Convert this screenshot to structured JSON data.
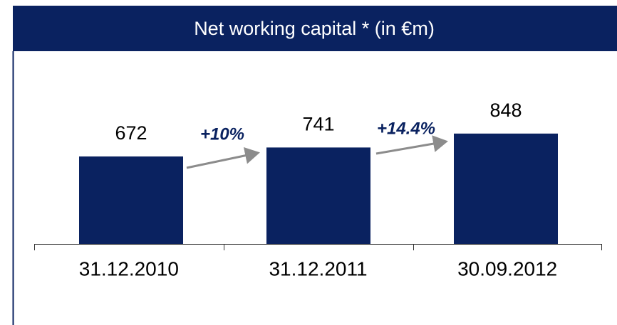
{
  "chart_data": {
    "type": "bar",
    "title": "Net working capital * (in €m)",
    "categories": [
      "31.12.2010",
      "31.12.2011",
      "30.09.2012"
    ],
    "values": [
      672,
      741,
      848
    ],
    "color": "#0a2260",
    "ylim": [
      0,
      1000
    ],
    "annotations": [
      "+10%",
      "+14.4%"
    ]
  }
}
